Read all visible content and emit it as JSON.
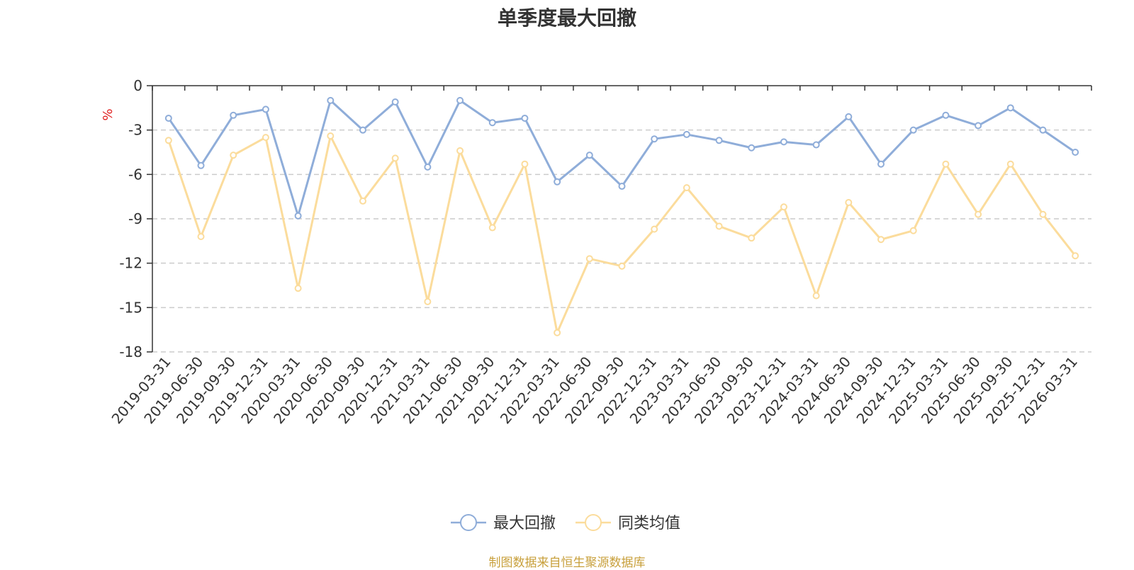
{
  "chart_data": {
    "type": "line",
    "title": "单季度最大回撤",
    "ylabel": "%",
    "ylim": [
      -18,
      0
    ],
    "yticks": [
      "0",
      "-3",
      "-6",
      "-9",
      "-12",
      "-15",
      "-18"
    ],
    "grid": true,
    "legend_position": "bottom",
    "categories": [
      "2019-03-31",
      "2019-06-30",
      "2019-09-30",
      "2019-12-31",
      "2020-03-31",
      "2020-06-30",
      "2020-09-30",
      "2020-12-31",
      "2021-03-31",
      "2021-06-30",
      "2021-09-30",
      "2021-12-31",
      "2022-03-31",
      "2022-06-30",
      "2022-09-30",
      "2022-12-31",
      "2023-03-31",
      "2023-06-30",
      "2023-09-30",
      "2023-12-31",
      "2024-03-31",
      "2024-06-30",
      "2024-09-30",
      "2024-12-31",
      "2025-03-31",
      "2025-06-30",
      "2025-09-30",
      "2025-12-31",
      "2026-03-31"
    ],
    "series": [
      {
        "name": "最大回撤",
        "color": "#8fadd9",
        "values": [
          -2.2,
          -5.4,
          -2.0,
          -1.6,
          -8.8,
          -1.0,
          -3.0,
          -1.1,
          -5.5,
          -1.0,
          -2.5,
          -2.2,
          -6.5,
          -4.7,
          -6.8,
          -3.6,
          -3.3,
          -3.7,
          -4.2,
          -3.8,
          -4.0,
          -2.1,
          -5.3,
          -3.0,
          -2.0,
          -2.7,
          -1.5,
          -3.0,
          -4.5
        ]
      },
      {
        "name": "同类均值",
        "color": "#fbdc9c",
        "values": [
          -3.7,
          -10.2,
          -4.7,
          -3.5,
          -13.7,
          -3.4,
          -7.8,
          -4.9,
          -14.6,
          -4.4,
          -9.6,
          -5.3,
          -16.7,
          -11.7,
          -12.2,
          -9.7,
          -6.9,
          -9.5,
          -10.3,
          -8.2,
          -14.2,
          -7.9,
          -10.4,
          -9.8,
          -5.3,
          -8.7,
          -5.3,
          -8.7,
          -11.5
        ]
      }
    ]
  },
  "footer": "制图数据来自恒生聚源数据库"
}
